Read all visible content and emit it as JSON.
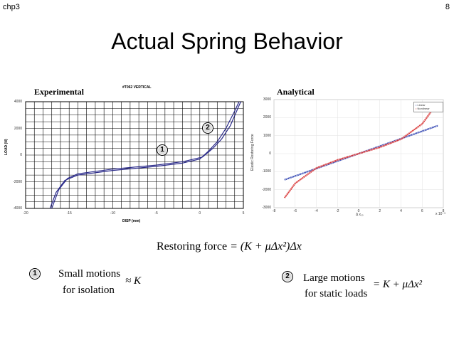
{
  "slide": {
    "chapter": "chp3",
    "page_number": "8",
    "title": "Actual Spring Behavior"
  },
  "experimental": {
    "label": "Experimental",
    "test_id": "#T062 VERTICAL",
    "ylabel": "LOAD (N)",
    "xlabel": "DISP (mm)",
    "yticks": [
      "4000",
      "2000",
      "0",
      "-2000",
      "-4000"
    ],
    "xticks": [
      "-20",
      "-15",
      "-10",
      "-5",
      "0",
      "5"
    ],
    "marker_1": "1",
    "marker_2": "2"
  },
  "analytical": {
    "label": "Analytical",
    "ylabel": "Elastic Restoring Force",
    "xlabel": "Δ x₁₀",
    "x_scale_note": "x 10⁻³",
    "yticks": [
      "3000",
      "2000",
      "1000",
      "0",
      "-1000",
      "-2000",
      "-3000"
    ],
    "xticks": [
      "-8",
      "-6",
      "-4",
      "-2",
      "0",
      "2",
      "4",
      "6",
      "8"
    ],
    "legend": [
      "Linear",
      "Nonlinear"
    ],
    "colors": {
      "linear": "#2b3fb0",
      "nonlinear": "#d62828"
    }
  },
  "equation": {
    "label": "Restoring force",
    "expression": "= (K + μΔx²)Δx"
  },
  "notes": [
    {
      "marker": "1",
      "line1": "Small motions",
      "line2": "for isolation",
      "relation": "≈ K"
    },
    {
      "marker": "2",
      "line1": "Large motions",
      "line2": "for static loads",
      "relation": "= K + μΔx²"
    }
  ],
  "chart_data": [
    {
      "type": "line",
      "title": "#T062 VERTICAL",
      "xlabel": "DISP (mm)",
      "ylabel": "LOAD (N)",
      "xlim": [
        -20,
        5
      ],
      "ylim": [
        -4000,
        4000
      ],
      "grid": true,
      "series": [
        {
          "x": [
            -17.2,
            -16.5,
            -15.5,
            -14,
            -10,
            -5,
            -2,
            0,
            1,
            2,
            3,
            4,
            4.5
          ],
          "y": [
            -4000,
            -2800,
            -1900,
            -1500,
            -1150,
            -850,
            -600,
            -300,
            300,
            1000,
            2000,
            3300,
            4000
          ]
        },
        {
          "x": [
            -17.0,
            -16.2,
            -15.2,
            -14,
            -10,
            -5,
            -2,
            0.3,
            1.5,
            2.5,
            3.5,
            4.3,
            4.7
          ],
          "y": [
            -4000,
            -2600,
            -1750,
            -1400,
            -1050,
            -750,
            -500,
            -150,
            500,
            1200,
            2200,
            3400,
            4000
          ]
        }
      ]
    },
    {
      "type": "line",
      "xlabel": "Δ x₁₀",
      "ylabel": "Elastic Restoring Force",
      "xlim": [
        -8,
        8
      ],
      "ylim": [
        -3000,
        3000
      ],
      "legend_position": "top-right",
      "series": [
        {
          "name": "Linear",
          "x": [
            -7,
            -4,
            0,
            4,
            7.5
          ],
          "y": [
            -1450,
            -830,
            0,
            830,
            1560
          ]
        },
        {
          "name": "Nonlinear",
          "x": [
            -7,
            -6,
            -4,
            -2,
            0,
            2,
            4,
            6,
            7
          ],
          "y": [
            -2450,
            -1650,
            -800,
            -350,
            0,
            350,
            800,
            1650,
            2450
          ]
        }
      ]
    }
  ]
}
